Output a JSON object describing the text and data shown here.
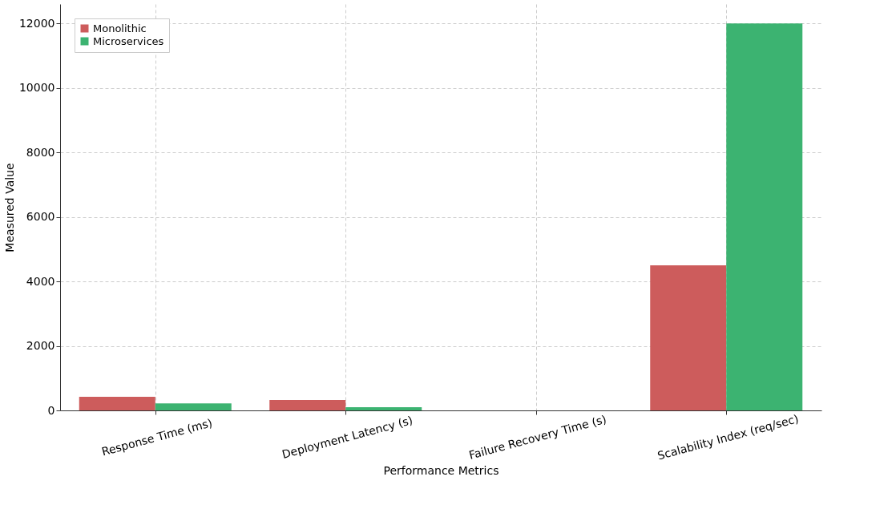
{
  "chart_data": {
    "type": "bar",
    "xlabel": "Performance Metrics",
    "ylabel": "Measured Value",
    "categories": [
      "Response Time (ms)",
      "Deployment Latency (s)",
      "Failure Recovery Time (s)",
      "Scalability Index (req/sec)"
    ],
    "series": [
      {
        "name": "Monolithic",
        "color": "#cd5c5c",
        "values": [
          420,
          320,
          0,
          4500
        ]
      },
      {
        "name": "Microservices",
        "color": "#3cb371",
        "values": [
          220,
          100,
          0,
          12000
        ]
      }
    ],
    "ylim": [
      0,
      12600
    ],
    "yticks": [
      0,
      2000,
      4000,
      6000,
      8000,
      10000,
      12000
    ],
    "grid": true,
    "legend": "top left"
  }
}
